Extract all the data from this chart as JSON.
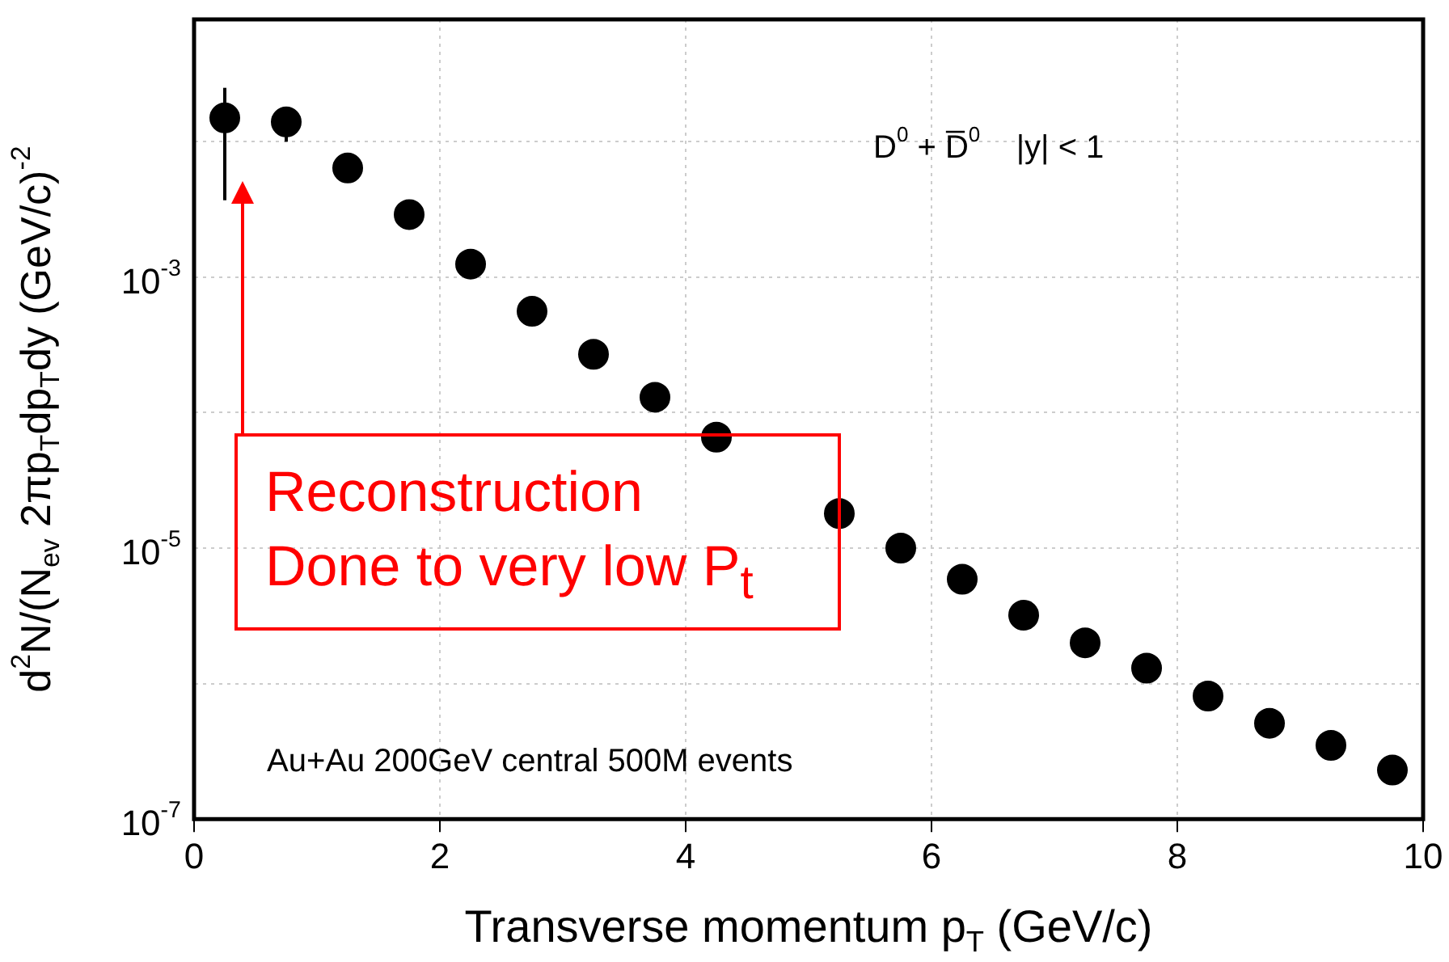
{
  "chart_data": {
    "type": "scatter",
    "xlabel": "Transverse momentum p$_{T}$ (GeV/c)",
    "ylabel": "d$^{2}$N/(N$_{ev}$ 2πp$_{T}$dp$_{T}$dy (GeV/c)$^{-2}$",
    "x": [
      0.25,
      0.75,
      1.25,
      1.75,
      2.25,
      2.75,
      3.25,
      3.75,
      4.25,
      4.75,
      5.25,
      5.75,
      6.25,
      6.75,
      7.25,
      7.75,
      8.25,
      8.75,
      9.25,
      9.75
    ],
    "values": [
      0.015,
      0.014,
      0.0064,
      0.0029,
      0.00125,
      0.00056,
      0.00027,
      0.00013,
      6.6e-05,
      null,
      1.8e-05,
      1e-05,
      5.9e-06,
      3.2e-06,
      2e-06,
      1.3e-06,
      8.1e-07,
      5.1e-07,
      3.5e-07,
      2.3e-07
    ],
    "errors": [
      [
        0.0037,
        0.025
      ],
      [
        0.01,
        0.0178
      ],
      null,
      null,
      null,
      null,
      null,
      null,
      null,
      null,
      null,
      null,
      null,
      null,
      null,
      null,
      null,
      null,
      null,
      null
    ],
    "color": "#000000",
    "marker": "circle",
    "log": "y",
    "grid": true,
    "xlim": [
      0,
      10
    ],
    "xticks": [
      0,
      2,
      4,
      6,
      8,
      10
    ],
    "ylim": [
      1e-07,
      0.08
    ],
    "yticks": [
      {
        "value": 1e-07,
        "label": "10$^{-7}$"
      },
      {
        "value": 1e-06,
        "label": null
      },
      {
        "value": 1e-05,
        "label": "10$^{-5}$"
      },
      {
        "value": 0.0001,
        "label": null
      },
      {
        "value": 0.001,
        "label": "10$^{-3}$"
      },
      {
        "value": 0.01,
        "label": null
      }
    ],
    "annotations": [
      "D$^{0}$ + D̅$^{0}$    |y| < 1",
      "Au+Au 200GeV central 500M events",
      "Reconstruction\nDone to very low P$_{t}$"
    ]
  }
}
